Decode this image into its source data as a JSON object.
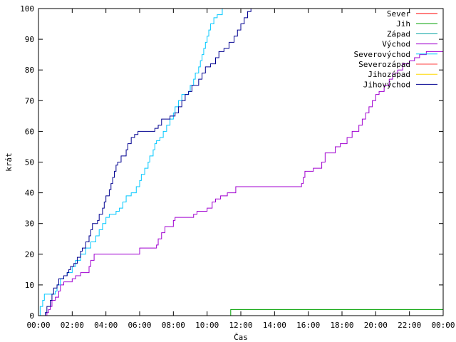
{
  "chart_data": {
    "type": "line",
    "title": "",
    "xlabel": "Čas",
    "ylabel": "krát",
    "xlim": [
      0,
      24
    ],
    "ylim": [
      0,
      100
    ],
    "x_ticks": [
      {
        "v": 0,
        "label": "00:00"
      },
      {
        "v": 2,
        "label": "02:00"
      },
      {
        "v": 4,
        "label": "04:00"
      },
      {
        "v": 6,
        "label": "06:00"
      },
      {
        "v": 8,
        "label": "08:00"
      },
      {
        "v": 10,
        "label": "10:00"
      },
      {
        "v": 12,
        "label": "12:00"
      },
      {
        "v": 14,
        "label": "14:00"
      },
      {
        "v": 16,
        "label": "16:00"
      },
      {
        "v": 18,
        "label": "18:00"
      },
      {
        "v": 20,
        "label": "20:00"
      },
      {
        "v": 22,
        "label": "22:00"
      },
      {
        "v": 24,
        "label": "00:00"
      }
    ],
    "y_ticks": [
      0,
      10,
      20,
      30,
      40,
      50,
      60,
      70,
      80,
      90,
      100
    ],
    "grid": false,
    "legend_position": "top-right",
    "series": [
      {
        "name": "Sever",
        "color": "#ff0000",
        "step": true,
        "points": []
      },
      {
        "name": "Jih",
        "color": "#00a000",
        "step": true,
        "points": [
          [
            11.35,
            0
          ],
          [
            11.4,
            2
          ],
          [
            24,
            2
          ]
        ]
      },
      {
        "name": "Západ",
        "color": "#00a0a0",
        "step": true,
        "points": []
      },
      {
        "name": "Východ",
        "color": "#a000d0",
        "step": true,
        "points": [
          [
            0.4,
            0
          ],
          [
            0.5,
            1
          ],
          [
            0.6,
            2
          ],
          [
            0.7,
            3
          ],
          [
            0.8,
            5
          ],
          [
            1.0,
            6
          ],
          [
            1.2,
            8
          ],
          [
            1.3,
            10
          ],
          [
            1.5,
            11
          ],
          [
            2.0,
            12
          ],
          [
            2.2,
            13
          ],
          [
            2.5,
            14
          ],
          [
            3.0,
            16
          ],
          [
            3.1,
            18
          ],
          [
            3.3,
            20
          ],
          [
            6.0,
            22
          ],
          [
            7.0,
            23
          ],
          [
            7.1,
            25
          ],
          [
            7.3,
            27
          ],
          [
            7.5,
            29
          ],
          [
            8.0,
            31
          ],
          [
            8.1,
            32
          ],
          [
            9.2,
            33
          ],
          [
            9.4,
            34
          ],
          [
            10.0,
            35
          ],
          [
            10.3,
            37
          ],
          [
            10.5,
            38
          ],
          [
            10.8,
            39
          ],
          [
            11.2,
            40
          ],
          [
            11.7,
            42
          ],
          [
            15.6,
            43
          ],
          [
            15.7,
            45
          ],
          [
            15.8,
            47
          ],
          [
            16.3,
            48
          ],
          [
            16.8,
            50
          ],
          [
            17.0,
            53
          ],
          [
            17.6,
            55
          ],
          [
            17.9,
            56
          ],
          [
            18.3,
            58
          ],
          [
            18.6,
            60
          ],
          [
            19.0,
            62
          ],
          [
            19.2,
            64
          ],
          [
            19.4,
            66
          ],
          [
            19.6,
            68
          ],
          [
            19.8,
            70
          ],
          [
            20.0,
            72
          ],
          [
            20.2,
            73
          ],
          [
            20.5,
            75
          ],
          [
            20.8,
            77
          ],
          [
            21.0,
            79
          ],
          [
            21.3,
            80
          ],
          [
            21.6,
            82
          ],
          [
            22.0,
            83
          ],
          [
            22.3,
            84
          ],
          [
            22.6,
            85
          ],
          [
            23.0,
            86
          ],
          [
            24,
            86
          ]
        ]
      },
      {
        "name": "Severovýchod",
        "color": "#00c8ff",
        "step": true,
        "points": [
          [
            0.0,
            0
          ],
          [
            0.1,
            3
          ],
          [
            0.25,
            5
          ],
          [
            0.35,
            7
          ],
          [
            1.0,
            8
          ],
          [
            1.1,
            10
          ],
          [
            1.3,
            12
          ],
          [
            1.5,
            13
          ],
          [
            1.7,
            14
          ],
          [
            2.0,
            16
          ],
          [
            2.2,
            18
          ],
          [
            2.5,
            20
          ],
          [
            2.8,
            22
          ],
          [
            3.1,
            24
          ],
          [
            3.4,
            26
          ],
          [
            3.6,
            28
          ],
          [
            3.8,
            30
          ],
          [
            4.0,
            32
          ],
          [
            4.2,
            33
          ],
          [
            4.6,
            34
          ],
          [
            4.8,
            35
          ],
          [
            5.0,
            37
          ],
          [
            5.2,
            39
          ],
          [
            5.5,
            40
          ],
          [
            5.8,
            42
          ],
          [
            6.0,
            44
          ],
          [
            6.1,
            46
          ],
          [
            6.3,
            48
          ],
          [
            6.5,
            50
          ],
          [
            6.6,
            52
          ],
          [
            6.8,
            54
          ],
          [
            6.9,
            56
          ],
          [
            7.0,
            57
          ],
          [
            7.2,
            58
          ],
          [
            7.4,
            60
          ],
          [
            7.6,
            62
          ],
          [
            7.8,
            64
          ],
          [
            8.0,
            66
          ],
          [
            8.1,
            68
          ],
          [
            8.3,
            70
          ],
          [
            8.5,
            72
          ],
          [
            8.9,
            73
          ],
          [
            9.0,
            75
          ],
          [
            9.2,
            77
          ],
          [
            9.3,
            79
          ],
          [
            9.5,
            81
          ],
          [
            9.6,
            83
          ],
          [
            9.7,
            85
          ],
          [
            9.8,
            87
          ],
          [
            9.9,
            89
          ],
          [
            10.0,
            91
          ],
          [
            10.1,
            93
          ],
          [
            10.2,
            95
          ],
          [
            10.4,
            97
          ],
          [
            10.6,
            98
          ],
          [
            10.9,
            100
          ]
        ]
      },
      {
        "name": "Severozápad",
        "color": "#ff4040",
        "step": true,
        "points": []
      },
      {
        "name": "Jihozápad",
        "color": "#ffd700",
        "step": true,
        "points": []
      },
      {
        "name": "Jihovýchod",
        "color": "#000090",
        "step": true,
        "points": [
          [
            0.3,
            0
          ],
          [
            0.4,
            1
          ],
          [
            0.5,
            3
          ],
          [
            0.7,
            5
          ],
          [
            0.8,
            7
          ],
          [
            0.9,
            9
          ],
          [
            1.1,
            10
          ],
          [
            1.2,
            12
          ],
          [
            1.5,
            13
          ],
          [
            1.7,
            14
          ],
          [
            1.8,
            15
          ],
          [
            1.9,
            16
          ],
          [
            2.1,
            17
          ],
          [
            2.3,
            19
          ],
          [
            2.5,
            21
          ],
          [
            2.6,
            22
          ],
          [
            2.8,
            24
          ],
          [
            3.0,
            26
          ],
          [
            3.1,
            28
          ],
          [
            3.2,
            30
          ],
          [
            3.5,
            31
          ],
          [
            3.6,
            33
          ],
          [
            3.8,
            35
          ],
          [
            3.9,
            37
          ],
          [
            4.0,
            39
          ],
          [
            4.2,
            41
          ],
          [
            4.3,
            43
          ],
          [
            4.4,
            45
          ],
          [
            4.5,
            47
          ],
          [
            4.6,
            49
          ],
          [
            4.7,
            50
          ],
          [
            4.9,
            52
          ],
          [
            5.2,
            54
          ],
          [
            5.3,
            56
          ],
          [
            5.5,
            58
          ],
          [
            5.7,
            59
          ],
          [
            5.9,
            60
          ],
          [
            6.9,
            61
          ],
          [
            7.1,
            62
          ],
          [
            7.3,
            64
          ],
          [
            7.8,
            65
          ],
          [
            8.1,
            66
          ],
          [
            8.3,
            68
          ],
          [
            8.5,
            70
          ],
          [
            8.7,
            72
          ],
          [
            8.9,
            73
          ],
          [
            9.1,
            75
          ],
          [
            9.5,
            77
          ],
          [
            9.7,
            79
          ],
          [
            9.9,
            81
          ],
          [
            10.2,
            82
          ],
          [
            10.5,
            84
          ],
          [
            10.7,
            86
          ],
          [
            11.0,
            87
          ],
          [
            11.3,
            89
          ],
          [
            11.6,
            91
          ],
          [
            11.8,
            93
          ],
          [
            12.0,
            95
          ],
          [
            12.2,
            97
          ],
          [
            12.4,
            99
          ],
          [
            12.6,
            100
          ]
        ]
      }
    ]
  }
}
